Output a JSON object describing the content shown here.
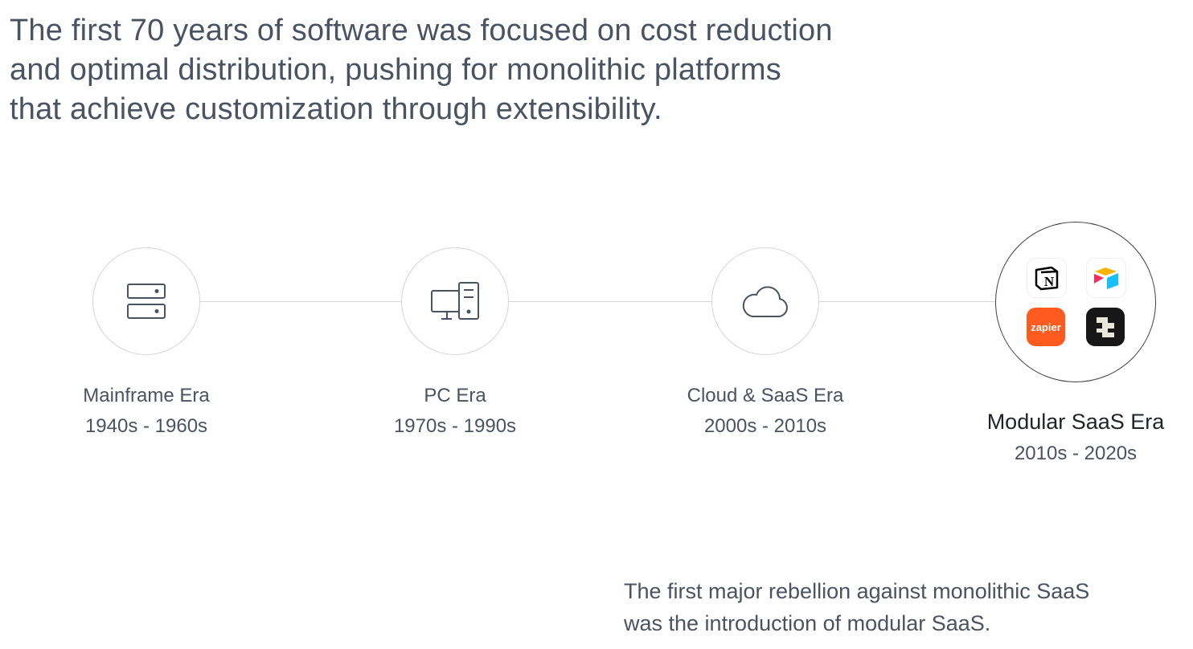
{
  "headline": "The first 70 years of software was focused on cost reduction and optimal distribution, pushing for monolithic platforms that achieve customization through extensibility.",
  "headline_lines": [
    "The first 70 years of software was focused on cost reduction",
    "and optimal distribution, pushing for monolithic platforms",
    "that achieve customization through extensibility."
  ],
  "eras": [
    {
      "name": "Mainframe Era",
      "years": "1940s - 1960s",
      "icon": "server-icon"
    },
    {
      "name": "PC Era",
      "years": "1970s - 1990s",
      "icon": "desktop-computer-icon"
    },
    {
      "name": "Cloud & SaaS Era",
      "years": "2000s - 2010s",
      "icon": "cloud-icon"
    },
    {
      "name": "Modular SaaS Era",
      "years": "2010s - 2020s",
      "icon": "app-logos",
      "highlighted": true
    }
  ],
  "apps": [
    {
      "name": "Notion",
      "glyph": "N"
    },
    {
      "name": "Airtable"
    },
    {
      "name": "Zapier",
      "glyph": "zapier",
      "color": "#ff5a1f"
    },
    {
      "name": "Coda-like dark app",
      "color": "#171717"
    }
  ],
  "footer_lines": [
    "The first major rebellion against monolithic SaaS",
    "was the introduction of modular SaaS."
  ],
  "colors": {
    "text": "#4a5362",
    "line": "#d6d8dc",
    "zapier": "#ff5a1f"
  }
}
